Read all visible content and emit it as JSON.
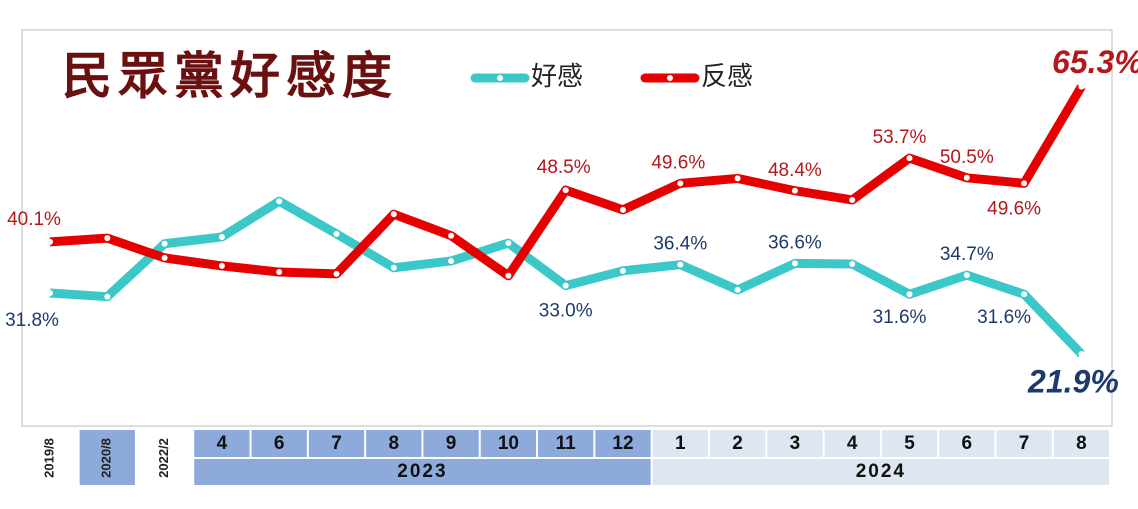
{
  "chart_data": {
    "type": "line",
    "title": "民眾黨好感度",
    "categories": [
      "2019/8",
      "2020/8",
      "2022/2",
      "4",
      "6",
      "7",
      "8",
      "9",
      "10",
      "11",
      "12",
      "1",
      "2",
      "3",
      "4",
      "5",
      "6",
      "7",
      "8"
    ],
    "x_groups": [
      {
        "label": "2023",
        "span": [
          3,
          10
        ]
      },
      {
        "label": "2024",
        "span": [
          11,
          18
        ]
      }
    ],
    "ylim": [
      15,
      70
    ],
    "series": [
      {
        "name": "好感",
        "color": "#3cc8c8",
        "values": [
          31.8,
          31.2,
          39.8,
          40.9,
          46.7,
          41.4,
          35.9,
          37.0,
          39.9,
          33.0,
          35.4,
          36.4,
          32.3,
          36.6,
          36.5,
          31.6,
          34.7,
          31.6,
          21.9
        ],
        "value_labels": [
          "31.8%",
          null,
          null,
          null,
          null,
          null,
          null,
          null,
          null,
          "33.0%",
          null,
          "36.4%",
          null,
          "36.6%",
          null,
          "31.6%",
          "34.7%",
          "31.6%",
          "21.9%"
        ]
      },
      {
        "name": "反感",
        "color": "#e60000",
        "values": [
          40.1,
          40.7,
          37.5,
          36.2,
          35.2,
          34.9,
          44.6,
          41.1,
          34.6,
          48.5,
          45.3,
          49.6,
          50.4,
          48.4,
          46.9,
          53.7,
          50.5,
          49.6,
          65.3
        ],
        "value_labels": [
          "40.1%",
          null,
          null,
          null,
          null,
          null,
          null,
          null,
          null,
          "48.5%",
          null,
          "49.6%",
          null,
          "48.4%",
          null,
          "53.7%",
          "50.5%",
          "49.6%",
          "65.3%"
        ]
      }
    ]
  }
}
